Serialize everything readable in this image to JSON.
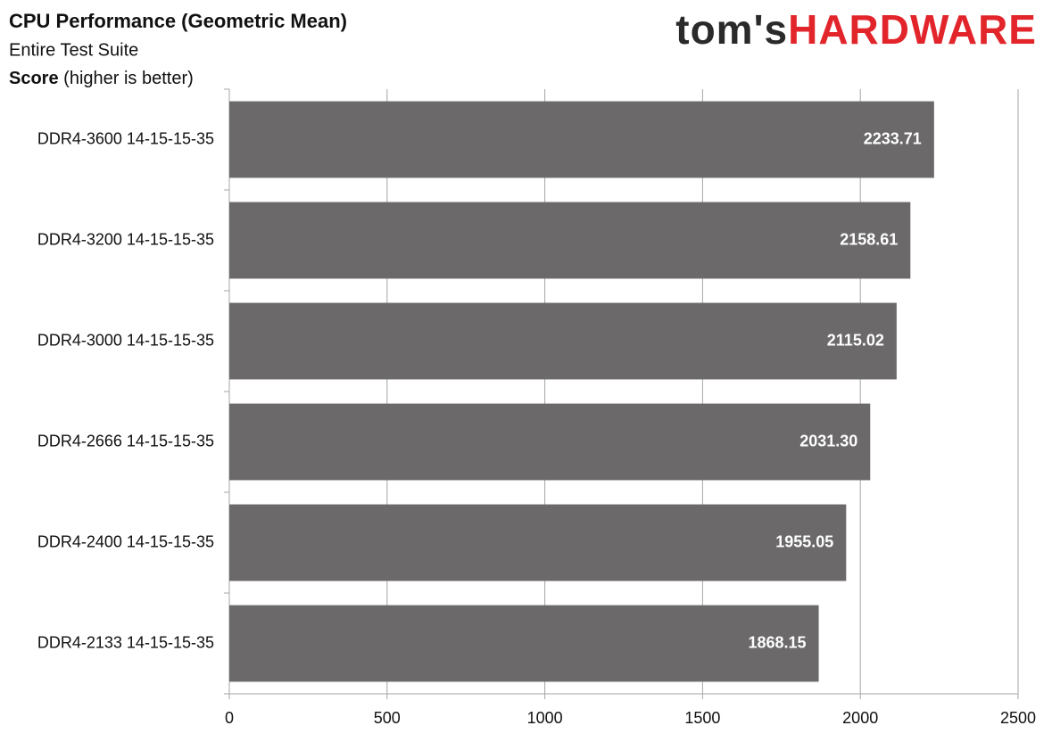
{
  "chart_data": {
    "type": "hbar",
    "title": "CPU Performance (Geometric Mean)",
    "subtitle": "Entire Test Suite",
    "axis_title": {
      "bold": "Score",
      "rest": "(higher is better)"
    },
    "brand": {
      "lead": "tom's",
      "mark": "HARDWARE"
    },
    "categories": [
      "DDR4-3600 14-15-15-35",
      "DDR4-3200 14-15-15-35",
      "DDR4-3000 14-15-15-35",
      "DDR4-2666 14-15-15-35",
      "DDR4-2400 14-15-15-35",
      "DDR4-2133 14-15-15-35"
    ],
    "values": [
      2233.71,
      2158.61,
      2115.02,
      2031.3,
      1955.05,
      1868.15
    ],
    "value_labels": [
      "2233.71",
      "2158.61",
      "2115.02",
      "2031.30",
      "1955.05",
      "1868.15"
    ],
    "color": "#6b6969",
    "xlim": [
      0,
      2500
    ],
    "xticks": [
      0,
      500,
      1000,
      1500,
      2000,
      2500
    ],
    "grid": true
  }
}
